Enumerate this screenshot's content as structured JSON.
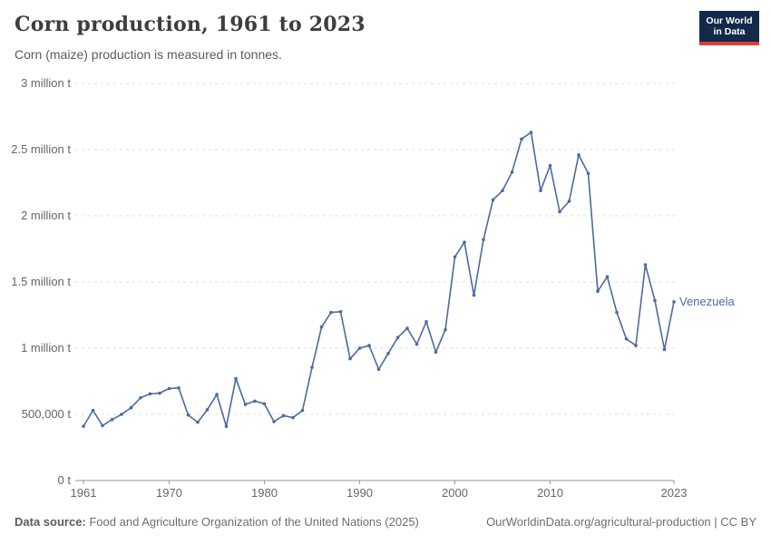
{
  "header": {
    "title": "Corn production, 1961 to 2023",
    "subtitle": "Corn (maize) production is measured in tonnes.",
    "logo": {
      "line1": "Our World",
      "line2": "in Data"
    }
  },
  "chart_data": {
    "type": "line",
    "title": "Corn production, 1961 to 2023",
    "xlabel": "",
    "ylabel": "",
    "xlim": [
      1961,
      2023
    ],
    "ylim": [
      0,
      3000000
    ],
    "grid": "horizontal-dashed",
    "legend_position": "end-of-line-label",
    "x_ticks": [
      1961,
      1970,
      1980,
      1990,
      2000,
      2010,
      2023
    ],
    "y_ticks": [
      {
        "value": 0,
        "label": "0 t"
      },
      {
        "value": 500000,
        "label": "500,000 t"
      },
      {
        "value": 1000000,
        "label": "1 million t"
      },
      {
        "value": 1500000,
        "label": "1.5 million t"
      },
      {
        "value": 2000000,
        "label": "2 million t"
      },
      {
        "value": 2500000,
        "label": "2.5 million t"
      },
      {
        "value": 3000000,
        "label": "3 million t"
      }
    ],
    "series": [
      {
        "name": "Venezuela",
        "color": "#4c6a9d",
        "x": [
          1961,
          1962,
          1963,
          1964,
          1965,
          1966,
          1967,
          1968,
          1969,
          1970,
          1971,
          1972,
          1973,
          1974,
          1975,
          1976,
          1977,
          1978,
          1979,
          1980,
          1981,
          1982,
          1983,
          1984,
          1985,
          1986,
          1987,
          1988,
          1989,
          1990,
          1991,
          1992,
          1993,
          1994,
          1995,
          1996,
          1997,
          1998,
          1999,
          2000,
          2001,
          2002,
          2003,
          2004,
          2005,
          2006,
          2007,
          2008,
          2009,
          2010,
          2011,
          2012,
          2013,
          2014,
          2015,
          2016,
          2017,
          2018,
          2019,
          2020,
          2021,
          2022,
          2023
        ],
        "values": [
          410000,
          530000,
          415000,
          460000,
          500000,
          550000,
          625000,
          655000,
          660000,
          695000,
          700000,
          495000,
          440000,
          535000,
          650000,
          410000,
          770000,
          575000,
          600000,
          580000,
          445000,
          490000,
          475000,
          530000,
          855000,
          1160000,
          1270000,
          1275000,
          920000,
          1000000,
          1020000,
          840000,
          960000,
          1080000,
          1150000,
          1030000,
          1200000,
          970000,
          1140000,
          1690000,
          1800000,
          1400000,
          1820000,
          2120000,
          2190000,
          2330000,
          2580000,
          2630000,
          2190000,
          2380000,
          2030000,
          2110000,
          2460000,
          2320000,
          1430000,
          1540000,
          1270000,
          1070000,
          1020000,
          1630000,
          1360000,
          990000,
          1350000
        ]
      }
    ]
  },
  "footer": {
    "source_label": "Data source:",
    "source_text": " Food and Agriculture Organization of the United Nations (2025)",
    "link_text": "OurWorldinData.org/agricultural-production | CC BY"
  },
  "colors": {
    "line": "#4c6a9d",
    "grid": "#dcdcdc",
    "axis": "#999999",
    "logo_bg": "#12294b",
    "logo_red": "#e03e32"
  }
}
